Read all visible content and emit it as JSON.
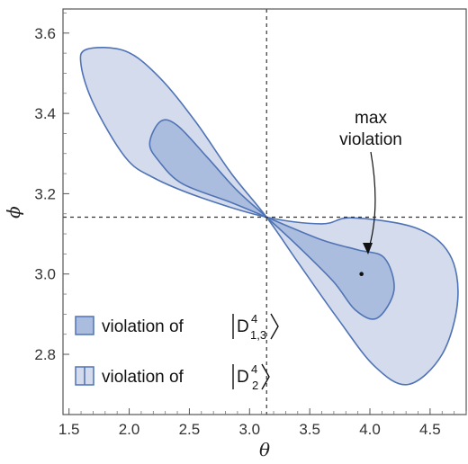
{
  "chart_data": {
    "type": "area",
    "title": "",
    "xlabel": "θ",
    "ylabel": "ϕ",
    "xlim": [
      1.45,
      4.8
    ],
    "ylim": [
      2.65,
      3.66
    ],
    "x_ticks": [
      "1.5",
      "2.0",
      "2.5",
      "3.0",
      "3.5",
      "4.0",
      "4.5"
    ],
    "y_ticks": [
      "2.8",
      "3.0",
      "3.2",
      "3.4",
      "3.6"
    ],
    "grid": false,
    "legend_position": "bottom-left",
    "reference_lines": {
      "x": 3.1416,
      "y": 3.1416,
      "style": "dashed"
    },
    "series": [
      {
        "name": "violation of |D^4_2⟩",
        "role": "outer region",
        "fill": "#d3dbec",
        "stroke": "#4f73b5",
        "points": [
          [
            3.1416,
            3.1416
          ],
          [
            2.6,
            3.19
          ],
          [
            2.2,
            3.24
          ],
          [
            1.97,
            3.29
          ],
          [
            1.71,
            3.42
          ],
          [
            1.6,
            3.52
          ],
          [
            1.65,
            3.56
          ],
          [
            1.97,
            3.555
          ],
          [
            2.25,
            3.49
          ],
          [
            2.55,
            3.38
          ],
          [
            2.85,
            3.25
          ],
          [
            3.1416,
            3.1416
          ],
          [
            3.4,
            3.03
          ],
          [
            3.73,
            2.89
          ],
          [
            4.04,
            2.77
          ],
          [
            4.32,
            2.725
          ],
          [
            4.6,
            2.8
          ],
          [
            4.73,
            2.935
          ],
          [
            4.66,
            3.05
          ],
          [
            4.38,
            3.115
          ],
          [
            3.85,
            3.14
          ],
          [
            3.6,
            3.125
          ],
          [
            3.1416,
            3.1416
          ]
        ]
      },
      {
        "name": "violation of |D^4_{1,3}⟩",
        "role": "inner region",
        "fill": "#aabdde",
        "stroke": "#4f73b5",
        "points": [
          [
            3.1416,
            3.1416
          ],
          [
            2.83,
            3.18
          ],
          [
            2.44,
            3.225
          ],
          [
            2.25,
            3.28
          ],
          [
            2.17,
            3.325
          ],
          [
            2.26,
            3.38
          ],
          [
            2.4,
            3.37
          ],
          [
            2.65,
            3.29
          ],
          [
            2.89,
            3.21
          ],
          [
            3.1416,
            3.1416
          ],
          [
            3.4,
            3.07
          ],
          [
            3.7,
            2.98
          ],
          [
            3.88,
            2.91
          ],
          [
            4.06,
            2.89
          ],
          [
            4.2,
            2.96
          ],
          [
            4.12,
            3.04
          ],
          [
            3.9,
            3.06
          ],
          [
            3.6,
            3.085
          ],
          [
            3.1416,
            3.1416
          ]
        ]
      }
    ],
    "annotations": [
      {
        "text_lines": [
          "max",
          "violation"
        ],
        "x": 3.93,
        "y": 3.0,
        "marker": "point"
      }
    ],
    "legend": [
      {
        "label_prefix": "violation of ",
        "ket_symbol": "D",
        "superscript": "4",
        "subscript": "1,3",
        "swatch": "inner-fill"
      },
      {
        "label_prefix": "violation of ",
        "ket_symbol": "D",
        "superscript": "4",
        "subscript": "2",
        "swatch": "outer-fill-split"
      }
    ],
    "colors": {
      "outer_fill": "#d3dbec",
      "inner_fill": "#aabdde",
      "stroke": "#4f73b5",
      "frame": "#555555"
    }
  }
}
